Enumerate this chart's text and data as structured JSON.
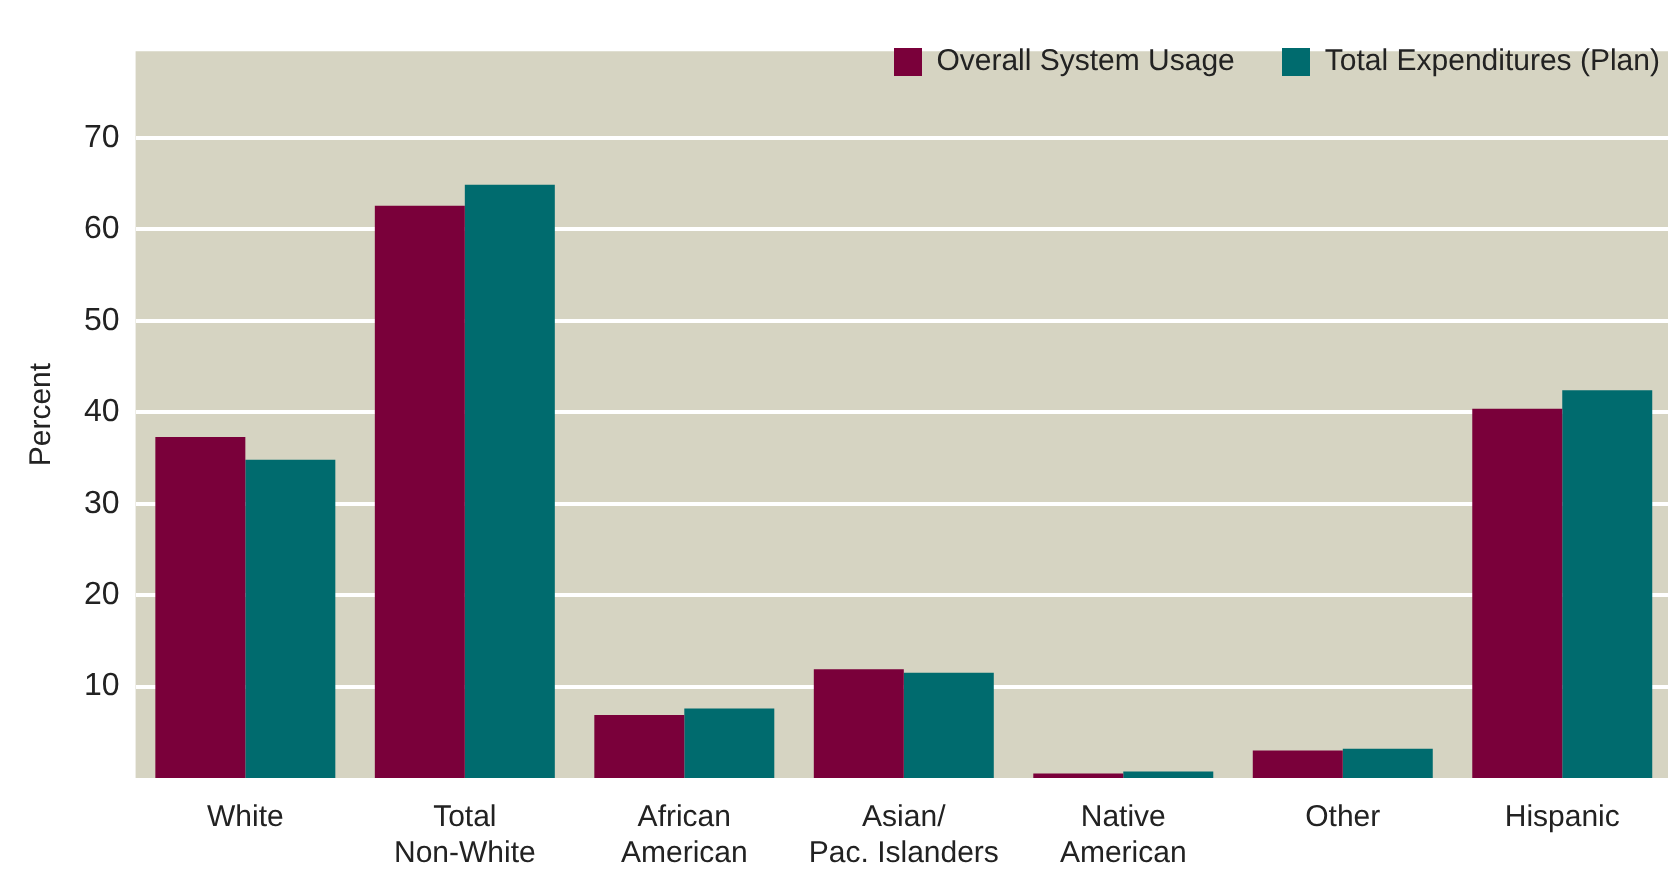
{
  "chart_data": {
    "type": "bar",
    "ylabel": "Percent",
    "categories": [
      "White",
      "Total\nNon-White",
      "African\nAmerican",
      "Asian/\nPac. Islanders",
      "Native\nAmerican",
      "Other",
      "Hispanic"
    ],
    "series": [
      {
        "name": "Overall System Usage",
        "color": "#7a003a",
        "values": [
          37.3,
          62.6,
          6.9,
          11.9,
          0.5,
          3.0,
          40.4
        ]
      },
      {
        "name": "Total Expenditures (Plan)",
        "color": "#006b6e",
        "values": [
          34.8,
          64.9,
          7.6,
          11.5,
          0.7,
          3.2,
          42.4
        ]
      }
    ],
    "ylim": [
      0,
      79.5
    ],
    "yticks": [
      10,
      20,
      30,
      40,
      50,
      60,
      70
    ],
    "grid": "y",
    "legend": "top right"
  }
}
